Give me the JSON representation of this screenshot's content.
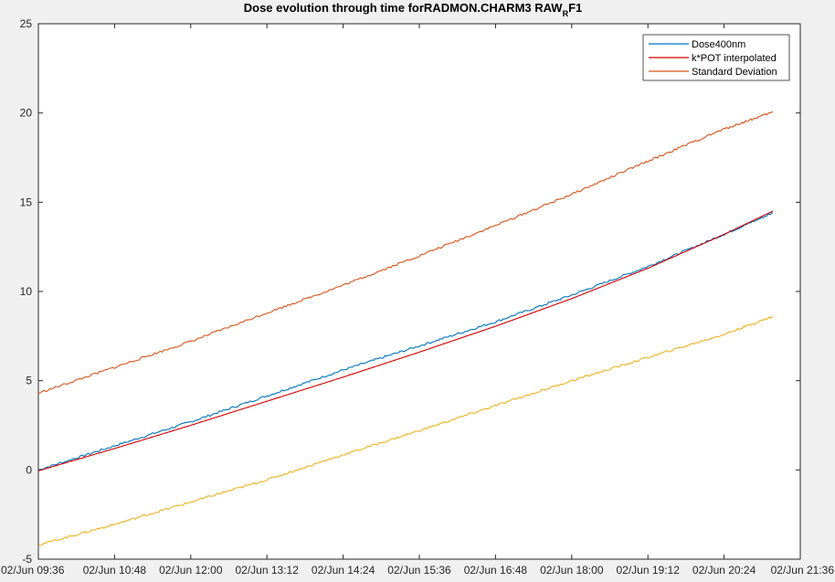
{
  "chart_data": {
    "type": "line",
    "title_main": "Dose evolution through time forRADMON.CHARM3 RAW",
    "title_sub": "R",
    "title_tail": "F1",
    "xlabel": "",
    "ylabel": "",
    "x_ticks": [
      "02/Jun 09:36",
      "02/Jun 10:48",
      "02/Jun 12:00",
      "02/Jun 13:12",
      "02/Jun 14:24",
      "02/Jun 15:36",
      "02/Jun 16:48",
      "02/Jun 18:00",
      "02/Jun 19:12",
      "02/Jun 20:24",
      "02/Jun 21:36"
    ],
    "xlim": [
      "02/Jun 09:36",
      "02/Jun 21:36"
    ],
    "ylim": [
      -5,
      25
    ],
    "y_ticks": [
      -5,
      0,
      5,
      10,
      15,
      20,
      25
    ],
    "grid": false,
    "legend_position": "top-right",
    "series": [
      {
        "name": "Dose400nm",
        "color": "#0072bd",
        "x": [
          "09:36",
          "10:48",
          "12:00",
          "13:12",
          "14:24",
          "15:36",
          "16:48",
          "18:00",
          "19:12",
          "20:24",
          "21:10"
        ],
        "y": [
          0.0,
          1.35,
          2.7,
          4.15,
          5.6,
          6.95,
          8.3,
          9.8,
          11.4,
          13.2,
          14.4
        ]
      },
      {
        "name": "k*POT interpolated",
        "color": "#d00000",
        "x": [
          "09:36",
          "10:48",
          "12:00",
          "13:12",
          "14:24",
          "15:36",
          "16:48",
          "18:00",
          "19:12",
          "20:24",
          "21:10"
        ],
        "y": [
          -0.05,
          1.2,
          2.5,
          3.85,
          5.2,
          6.6,
          8.05,
          9.6,
          11.3,
          13.2,
          14.5
        ]
      },
      {
        "name": "Standard Deviation",
        "color": "#d95319",
        "x": [
          "09:36",
          "10:48",
          "12:00",
          "13:12",
          "14:24",
          "15:36",
          "16:48",
          "18:00",
          "19:12",
          "20:24",
          "21:10"
        ],
        "y": [
          4.3,
          5.75,
          7.2,
          8.8,
          10.35,
          12.0,
          13.7,
          15.45,
          17.3,
          19.1,
          20.05
        ]
      },
      {
        "name": "",
        "color": "#edb120",
        "x": [
          "09:36",
          "10:48",
          "12:00",
          "13:12",
          "14:24",
          "15:36",
          "16:48",
          "18:00",
          "19:12",
          "20:24",
          "21:10"
        ],
        "y": [
          -4.2,
          -3.05,
          -1.8,
          -0.55,
          0.85,
          2.2,
          3.6,
          5.0,
          6.3,
          7.6,
          8.6
        ]
      }
    ]
  }
}
